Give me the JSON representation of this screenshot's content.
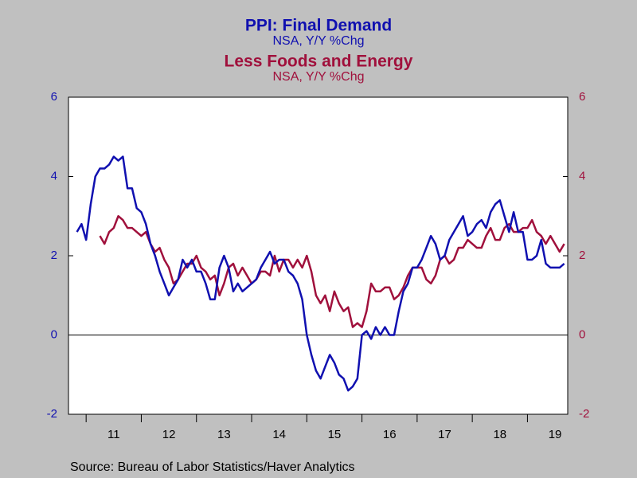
{
  "chart_data": {
    "type": "line",
    "series": [
      {
        "name": "PPI: Final Demand",
        "subtitle": "NSA, Y/Y %Chg",
        "color": "#1010b0",
        "axis": "y",
        "values": [
          2.6,
          2.8,
          2.4,
          3.3,
          4.0,
          4.2,
          4.2,
          4.3,
          4.5,
          4.4,
          4.5,
          3.7,
          3.7,
          3.2,
          3.1,
          2.8,
          2.3,
          2.0,
          1.6,
          1.3,
          1.0,
          1.2,
          1.4,
          1.9,
          1.7,
          1.9,
          1.6,
          1.6,
          1.3,
          0.9,
          0.9,
          1.7,
          2.0,
          1.7,
          1.1,
          1.3,
          1.1,
          1.2,
          1.3,
          1.4,
          1.7,
          1.9,
          2.1,
          1.8,
          1.9,
          1.9,
          1.6,
          1.5,
          1.3,
          0.9,
          0.0,
          -0.5,
          -0.9,
          -1.1,
          -0.8,
          -0.5,
          -0.7,
          -1.0,
          -1.1,
          -1.4,
          -1.3,
          -1.1,
          0.0,
          0.1,
          -0.1,
          0.2,
          0.0,
          0.2,
          0.0,
          0.0,
          0.6,
          1.1,
          1.3,
          1.7,
          1.7,
          1.9,
          2.2,
          2.5,
          2.3,
          1.9,
          2.0,
          2.4,
          2.6,
          2.8,
          3.0,
          2.5,
          2.6,
          2.8,
          2.9,
          2.7,
          3.1,
          3.3,
          3.4,
          3.0,
          2.6,
          3.1,
          2.6,
          2.6,
          1.9,
          1.9,
          2.0,
          2.4,
          1.8,
          1.7,
          1.7,
          1.7,
          1.8
        ]
      },
      {
        "name": "Less Foods and Energy",
        "subtitle": "NSA, Y/Y %Chg",
        "color": "#a0103c",
        "axis": "y2",
        "values": [
          null,
          null,
          null,
          null,
          null,
          2.5,
          2.3,
          2.6,
          2.7,
          3.0,
          2.9,
          2.7,
          2.7,
          2.6,
          2.5,
          2.6,
          2.3,
          2.1,
          2.2,
          1.9,
          1.7,
          1.3,
          1.4,
          1.6,
          1.8,
          1.8,
          2.0,
          1.7,
          1.6,
          1.4,
          1.5,
          1.0,
          1.3,
          1.7,
          1.8,
          1.5,
          1.7,
          1.5,
          1.3,
          1.4,
          1.6,
          1.6,
          1.5,
          2.0,
          1.6,
          1.9,
          1.9,
          1.7,
          1.9,
          1.7,
          2.0,
          1.6,
          1.0,
          0.8,
          1.0,
          0.6,
          1.1,
          0.8,
          0.6,
          0.7,
          0.2,
          0.3,
          0.2,
          0.6,
          1.3,
          1.1,
          1.1,
          1.2,
          1.2,
          0.9,
          1.0,
          1.2,
          1.5,
          1.7,
          1.7,
          1.7,
          1.4,
          1.3,
          1.5,
          1.9,
          2.0,
          1.8,
          1.9,
          2.2,
          2.2,
          2.4,
          2.3,
          2.2,
          2.2,
          2.5,
          2.7,
          2.4,
          2.4,
          2.7,
          2.8,
          2.6,
          2.6,
          2.7,
          2.7,
          2.9,
          2.6,
          2.5,
          2.3,
          2.5,
          2.3,
          2.1,
          2.3
        ]
      }
    ],
    "x": [
      2010.833,
      2010.917,
      2011,
      2011.083,
      2011.167,
      2011.25,
      2011.333,
      2011.417,
      2011.5,
      2011.583,
      2011.667,
      2011.75,
      2011.833,
      2011.917,
      2012,
      2012.083,
      2012.167,
      2012.25,
      2012.333,
      2012.417,
      2012.5,
      2012.583,
      2012.667,
      2012.75,
      2012.833,
      2012.917,
      2013,
      2013.083,
      2013.167,
      2013.25,
      2013.333,
      2013.417,
      2013.5,
      2013.583,
      2013.667,
      2013.75,
      2013.833,
      2013.917,
      2014,
      2014.083,
      2014.167,
      2014.25,
      2014.333,
      2014.417,
      2014.5,
      2014.583,
      2014.667,
      2014.75,
      2014.833,
      2014.917,
      2015,
      2015.083,
      2015.167,
      2015.25,
      2015.333,
      2015.417,
      2015.5,
      2015.583,
      2015.667,
      2015.75,
      2015.833,
      2015.917,
      2016,
      2016.083,
      2016.167,
      2016.25,
      2016.333,
      2016.417,
      2016.5,
      2016.583,
      2016.667,
      2016.75,
      2016.833,
      2016.917,
      2017,
      2017.083,
      2017.167,
      2017.25,
      2017.333,
      2017.417,
      2017.5,
      2017.583,
      2017.667,
      2017.75,
      2017.833,
      2017.917,
      2018,
      2018.083,
      2018.167,
      2018.25,
      2018.333,
      2018.417,
      2018.5,
      2018.583,
      2018.667,
      2018.75,
      2018.833,
      2018.917,
      2019,
      2019.083,
      2019.167,
      2019.25,
      2019.333,
      2019.417,
      2019.5,
      2019.583,
      2019.667
    ],
    "xlim": [
      2010.68,
      2019.73
    ],
    "xticks": [
      2011,
      2012,
      2013,
      2014,
      2015,
      2016,
      2017,
      2018,
      2019
    ],
    "xlabels": [
      {
        "value": 2011.5,
        "label": "11"
      },
      {
        "value": 2012.5,
        "label": "12"
      },
      {
        "value": 2013.5,
        "label": "13"
      },
      {
        "value": 2014.5,
        "label": "14"
      },
      {
        "value": 2015.5,
        "label": "15"
      },
      {
        "value": 2016.5,
        "label": "16"
      },
      {
        "value": 2017.5,
        "label": "17"
      },
      {
        "value": 2018.5,
        "label": "18"
      },
      {
        "value": 2019.5,
        "label": "19"
      }
    ],
    "ylim": [
      -2,
      6
    ],
    "yticks": [
      -2,
      0,
      2,
      4,
      6
    ],
    "y2lim": [
      -2,
      6
    ],
    "y2ticks": [
      -2,
      0,
      2,
      4,
      6
    ],
    "zero_line": true,
    "source": "Source:  Bureau of Labor Statistics/Haver Analytics"
  }
}
